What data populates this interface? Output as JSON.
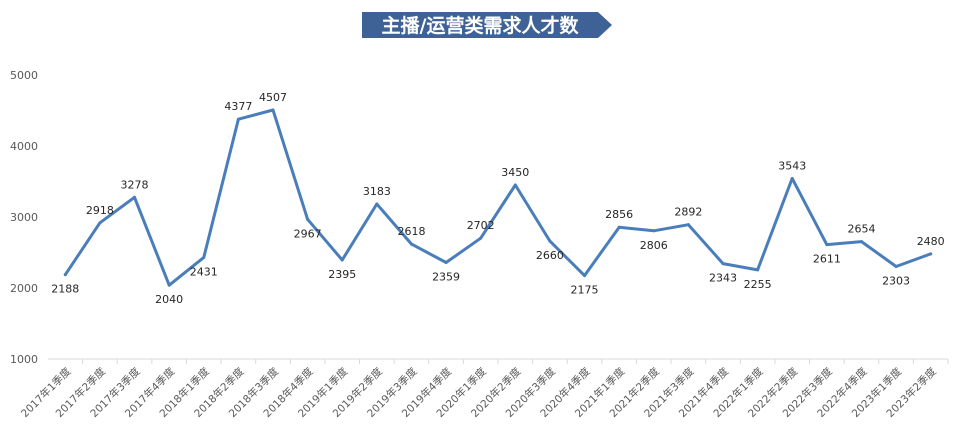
{
  "chart_data": {
    "type": "line",
    "title": "主播/运营类需求人才数",
    "categories": [
      "2017年1季度",
      "2017年2季度",
      "2017年3季度",
      "2017年4季度",
      "2018年1季度",
      "2018年2季度",
      "2018年3季度",
      "2018年4季度",
      "2019年1季度",
      "2019年2季度",
      "2019年3季度",
      "2019年4季度",
      "2020年1季度",
      "2020年2季度",
      "2020年3季度",
      "2020年4季度",
      "2021年1季度",
      "2021年2季度",
      "2021年3季度",
      "2021年4季度",
      "2022年1季度",
      "2022年2季度",
      "2022年3季度",
      "2022年4季度",
      "2023年1季度",
      "2023年2季度"
    ],
    "values": [
      2188,
      2918,
      3278,
      2040,
      2431,
      4377,
      4507,
      2967,
      2395,
      3183,
      2618,
      2359,
      2702,
      3450,
      2660,
      2175,
      2856,
      2806,
      2892,
      2343,
      2255,
      3543,
      2611,
      2654,
      2303,
      2480
    ],
    "data_labels": [
      "2188",
      "2918",
      "3278",
      "2040",
      "2431",
      "4377",
      "4507",
      "2967",
      "2395",
      "3183",
      "2618",
      "2359",
      "2702",
      "3450",
      "2660",
      "2175",
      "2856",
      "2806",
      "2892",
      "2343",
      "2255",
      "3543",
      "2611",
      "2654",
      "2303",
      "2480"
    ],
    "ylim": [
      1000,
      5000
    ],
    "yticks": [
      "1000",
      "2000",
      "3000",
      "4000",
      "5000"
    ],
    "grid": false,
    "legend": "none",
    "line_color": "#4a7ebb",
    "title_banner_color": "#3f6296",
    "label_side": [
      "below",
      "above",
      "above",
      "below",
      "below",
      "above",
      "above",
      "below",
      "below",
      "above",
      "above",
      "below",
      "above",
      "above",
      "below",
      "below",
      "above",
      "below",
      "above",
      "below",
      "below",
      "above",
      "below",
      "above",
      "below",
      "above"
    ]
  }
}
